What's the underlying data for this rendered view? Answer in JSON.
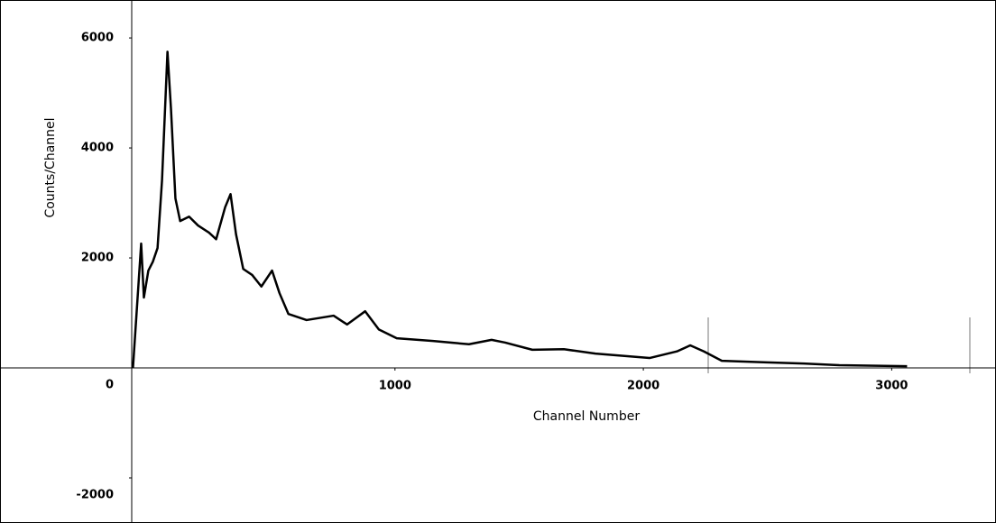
{
  "chart_data": {
    "type": "line",
    "x_label": "Channel Number",
    "y_label": "Counts/Channel",
    "xlim": [
      -60,
      3420
    ],
    "ylim": [
      -2820,
      6690
    ],
    "xticks": [
      1000,
      2000,
      3000
    ],
    "yticks": [
      6000,
      4000,
      2000,
      0,
      -2000
    ],
    "series": [
      {
        "color": "#000000",
        "x": [
          -55,
          -22,
          -11,
          7,
          25,
          44,
          62,
          84,
          98,
          116,
          135,
          171,
          207,
          251,
          280,
          316,
          338,
          360,
          389,
          425,
          462,
          505,
          535,
          571,
          644,
          753,
          807,
          880,
          935,
          1007,
          1153,
          1298,
          1389,
          1444,
          1553,
          1680,
          1807,
          2025,
          2135,
          2189,
          2244,
          2316,
          2498,
          2644,
          2789,
          3062
        ],
        "values": [
          0,
          2260,
          1280,
          1770,
          1930,
          2180,
          3410,
          5750,
          4720,
          3080,
          2670,
          2750,
          2590,
          2460,
          2340,
          2920,
          3160,
          2430,
          1800,
          1690,
          1480,
          1770,
          1360,
          980,
          870,
          950,
          790,
          1030,
          700,
          540,
          490,
          430,
          510,
          460,
          330,
          340,
          260,
          180,
          300,
          410,
          300,
          130,
          100,
          80,
          50,
          30
        ]
      }
    ]
  }
}
